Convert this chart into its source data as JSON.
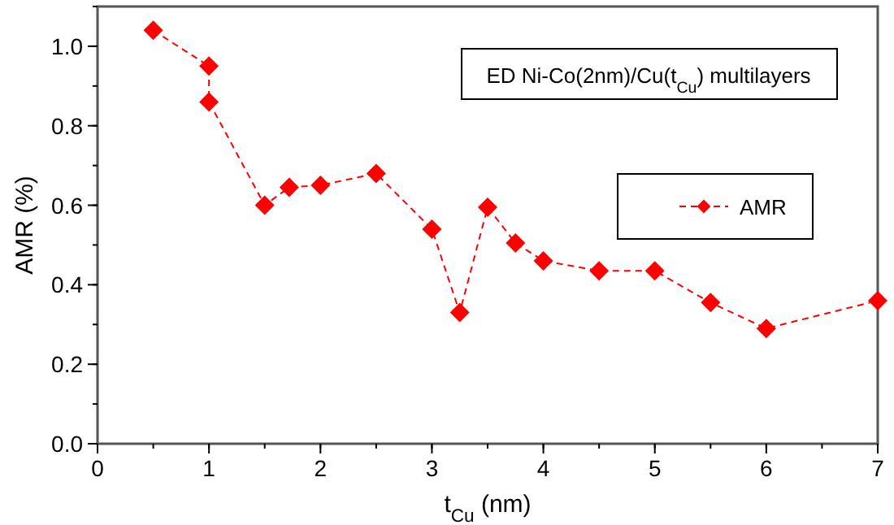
{
  "chart_data": {
    "type": "line",
    "xlabel": "t$_{Cu}$  (nm)",
    "ylabel": "AMR  (%)",
    "annotations": [
      "ED Ni-Co(2nm)/Cu(t$_{Cu}$) multilayers"
    ],
    "x": [
      0.5,
      1,
      1,
      1.5,
      1.72,
      2,
      2.5,
      3,
      3.25,
      3.5,
      3.75,
      4,
      4.5,
      5,
      5.5,
      6,
      7
    ],
    "series": [
      {
        "name": "AMR",
        "color": "#ff0000",
        "values": [
          1.04,
          0.95,
          0.86,
          0.6,
          0.645,
          0.65,
          0.68,
          0.54,
          0.33,
          0.595,
          0.505,
          0.46,
          0.435,
          0.435,
          0.355,
          0.29,
          0.36
        ]
      }
    ],
    "xlim": [
      0,
      7
    ],
    "xticks": [
      0,
      1,
      2,
      3,
      4,
      5,
      6,
      7
    ],
    "ylim": [
      0,
      1.1
    ],
    "yticks": [
      {
        "value": 0,
        "label": "0.0"
      },
      0.2,
      0.4,
      0.6,
      0.8,
      {
        "value": 1,
        "label": "1.0"
      }
    ],
    "grid": false,
    "legend": "top right",
    "marker": "diamond",
    "line_style": "dashed"
  }
}
